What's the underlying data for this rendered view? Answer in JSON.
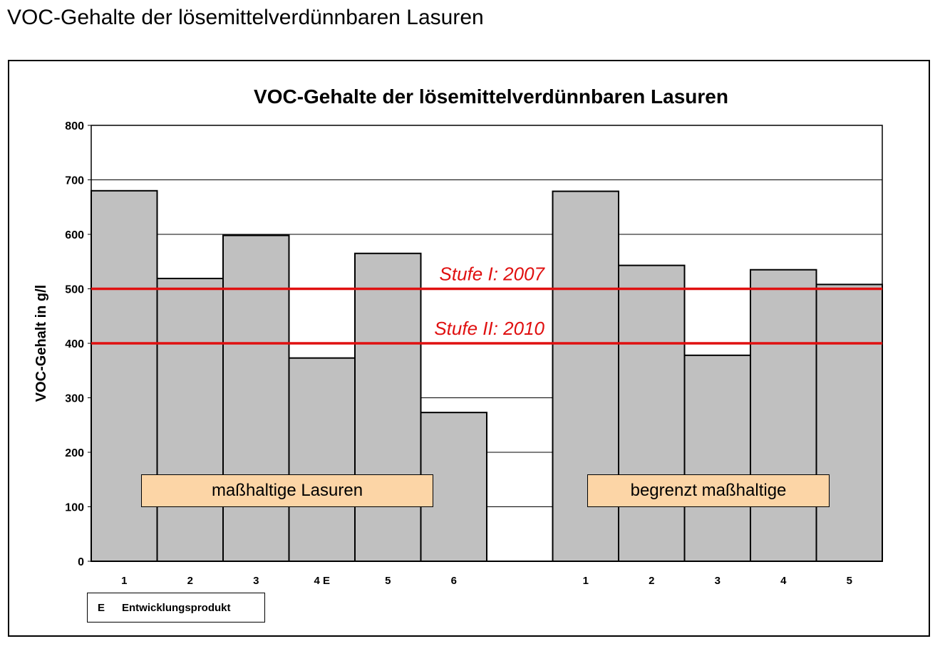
{
  "page": {
    "title": "VOC-Gehalte der lösemittelverdünnbaren Lasuren"
  },
  "chart_data": {
    "type": "bar",
    "title": "VOC-Gehalte der lösemittelverdünnbaren Lasuren",
    "ylabel": "VOC-Gehalt in g/l",
    "xlabel": "",
    "ylim": [
      0,
      800
    ],
    "yticks": [
      0,
      100,
      200,
      300,
      400,
      500,
      600,
      700,
      800
    ],
    "grid": true,
    "categories": [
      "1",
      "2",
      "3",
      "4 E",
      "5",
      "6",
      "",
      "1",
      "2",
      "3",
      "4",
      "5"
    ],
    "values": [
      680,
      519,
      598,
      373,
      565,
      273,
      null,
      679,
      543,
      378,
      535,
      508
    ],
    "bar_color": "#c0c0c0",
    "reference_lines": [
      {
        "label": "Stufe I: 2007",
        "value": 500,
        "color": "#e01010"
      },
      {
        "label": "Stufe II: 2010",
        "value": 400,
        "color": "#e01010"
      }
    ],
    "groups": [
      {
        "label": "maßhaltige Lasuren"
      },
      {
        "label": "begrenzt maßhaltige"
      }
    ],
    "legend": {
      "key": "E",
      "text": "Entwicklungsprodukt"
    }
  }
}
